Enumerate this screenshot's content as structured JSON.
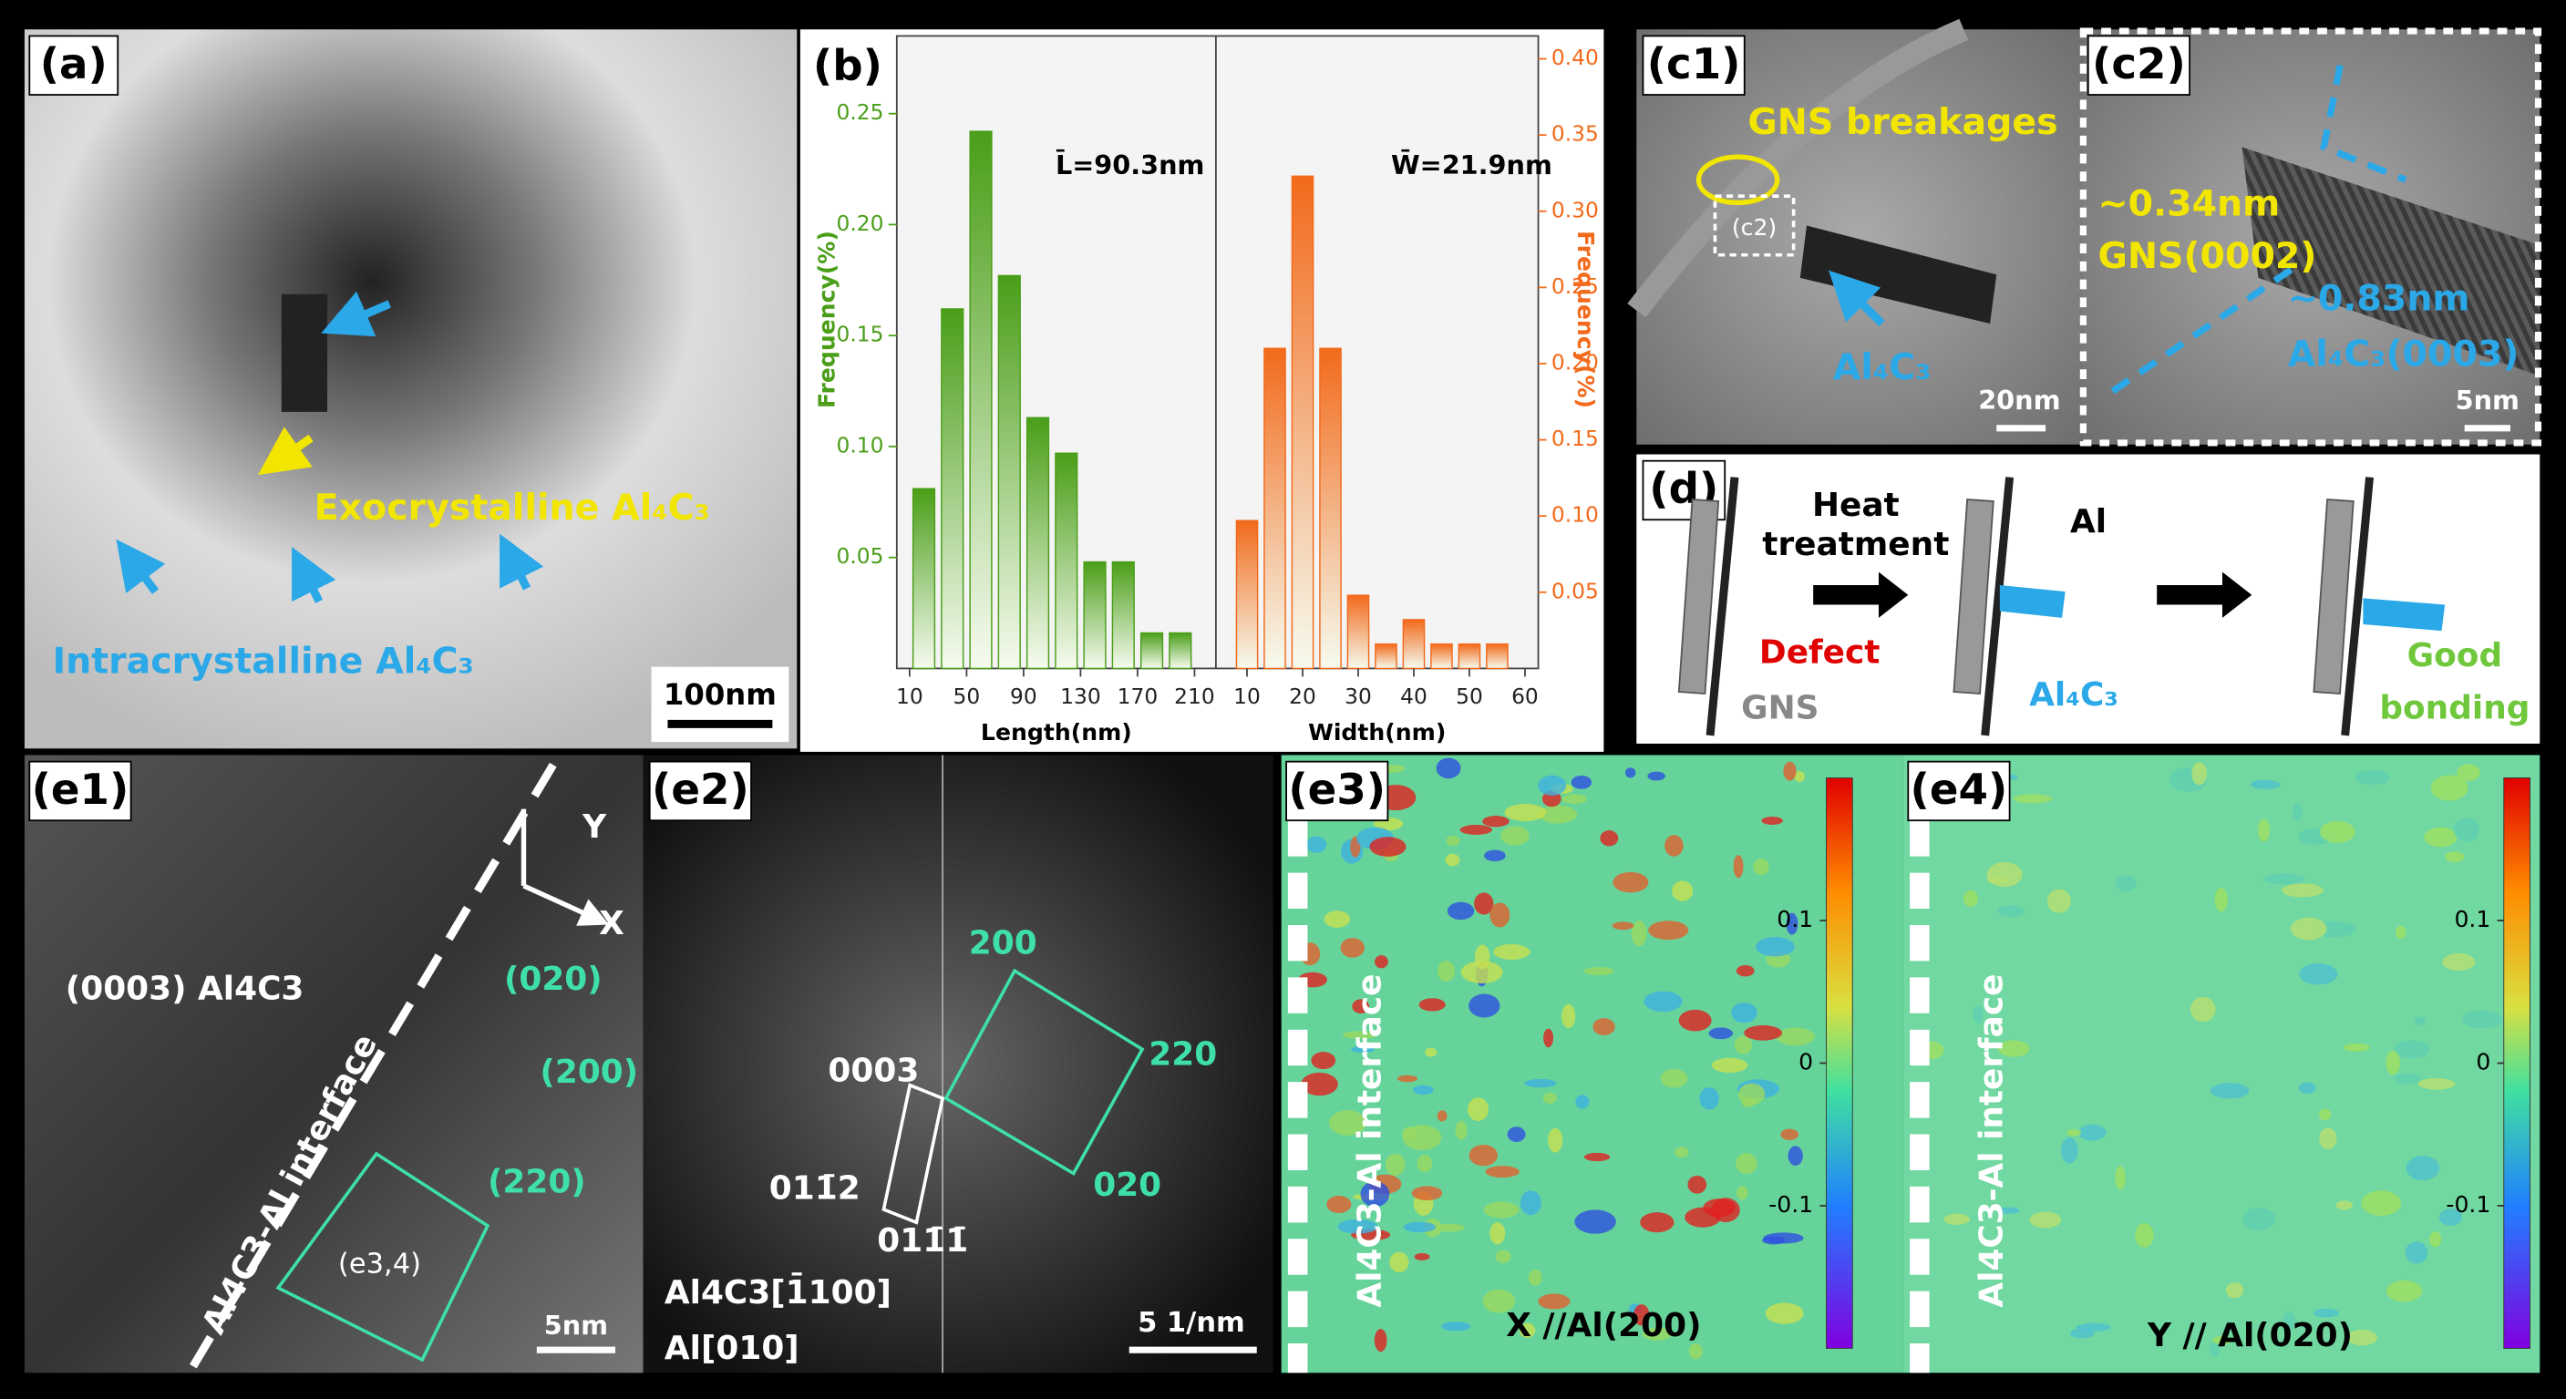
{
  "panel_a": {
    "label": "(a)",
    "exo": "Exocrystalline Al₄C₃",
    "intra": "Intracrystalline Al₄C₃",
    "scale": "100nm"
  },
  "panel_b": {
    "label": "(b)",
    "mean_length": "L̄=90.3nm",
    "mean_width": "W̄=21.9nm"
  },
  "chart_data": [
    {
      "type": "histogram",
      "xlabel": "Length(nm)",
      "ylabel": "Frequency(%)",
      "color": "#4a9e18",
      "bins": [
        10,
        30,
        50,
        70,
        90,
        110,
        130,
        150,
        170,
        190,
        210
      ],
      "values": [
        0.081,
        0.162,
        0.242,
        0.177,
        0.113,
        0.097,
        0.048,
        0.048,
        0.016,
        0.016
      ],
      "xlim": [
        1,
        225
      ],
      "xticks": [
        10,
        50,
        90,
        130,
        170,
        210
      ],
      "ylim": [
        0,
        0.285
      ],
      "yticks": [
        0.05,
        {
          "value": 0.1,
          "label": "0.10"
        },
        0.15,
        {
          "value": 0.2,
          "label": "0.20"
        },
        0.25
      ],
      "axis_side": "left"
    },
    {
      "type": "histogram",
      "xlabel": "Width(nm)",
      "ylabel": "Frequency(%)",
      "color": "#f26a1b",
      "bins": [
        7.5,
        12.5,
        17.5,
        22.5,
        27.5,
        32.5,
        37.5,
        42.5,
        47.5,
        52.5,
        57.5
      ],
      "values": [
        0.097,
        0.21,
        0.323,
        0.21,
        0.048,
        0.016,
        0.032,
        0.016,
        0.016,
        0.016
      ],
      "xlim": [
        4.4,
        62.4
      ],
      "xticks": [
        10,
        20,
        30,
        40,
        50,
        60
      ],
      "ylim": [
        0,
        0.415
      ],
      "yticks": [
        0.05,
        {
          "value": 0.1,
          "label": "0.10"
        },
        0.15,
        {
          "value": 0.2,
          "label": "0.20"
        },
        0.25,
        {
          "value": 0.3,
          "label": "0.30"
        },
        0.35,
        {
          "value": 0.4,
          "label": "0.40"
        }
      ],
      "axis_side": "right"
    }
  ],
  "panel_c1": {
    "label": "(c1)",
    "breakages": "GNS breakages",
    "inset": "(c2)",
    "phase": "Al₄C₃",
    "scale": "20nm"
  },
  "panel_c2": {
    "label": "(c2)",
    "d1": "~0.34nm",
    "plane1": "GNS(0002)",
    "d2": "~0.83nm",
    "plane2": "Al₄C₃(0003)",
    "scale": "5nm"
  },
  "panel_d": {
    "label": "(d)",
    "arrow1_line1": "Heat",
    "arrow1_line2": "treatment",
    "al": "Al",
    "defect": "Defect",
    "gns": "GNS",
    "phase": "Al₄C₃",
    "good1": "Good",
    "good2": "bonding"
  },
  "panel_e1": {
    "label": "(e1)",
    "y": "Y",
    "x": "X",
    "plane": "(0003) Al4C3",
    "p020": "(020)",
    "p200": "(200)",
    "p220": "(220)",
    "interface": "Al4C3-Al interface",
    "box": "(e3,4)",
    "scale": "5nm"
  },
  "panel_e2": {
    "label": "(e2)",
    "s200": "200",
    "s220": "220",
    "s0003": "0003",
    "s020": "020",
    "s0112": "011̄2",
    "s0111": "011̄1̄",
    "zone1": "Al4C3[1̄100]",
    "zone2": "Al[010]",
    "scale": "5 1/nm"
  },
  "panel_e3": {
    "label": "(e3)",
    "interface": "Al4C3-Al interface",
    "caption": "X //Al(200)"
  },
  "panel_e4": {
    "label": "(e4)",
    "interface": "Al4C3-Al interface",
    "caption": "Y // Al(020)"
  },
  "colorbar": {
    "lim": [
      -0.2,
      0.2
    ],
    "ticks": [
      0.1,
      0,
      -0.1
    ]
  }
}
